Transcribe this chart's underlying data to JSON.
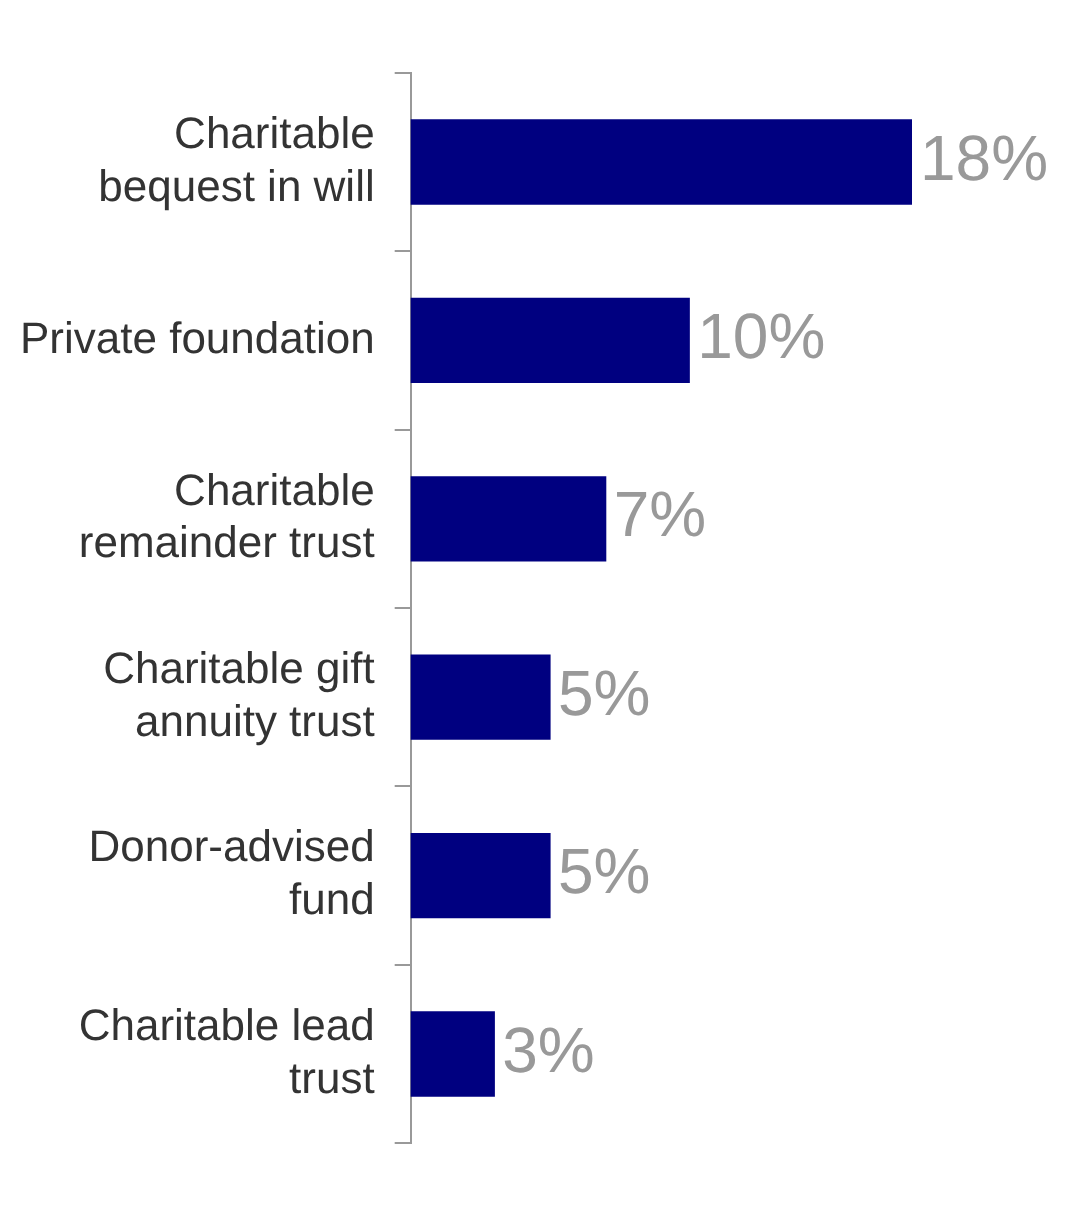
{
  "chart_data": {
    "type": "bar",
    "orientation": "horizontal",
    "categories": [
      "Charitable bequest in will",
      "Private foundation",
      "Charitable remainder trust",
      "Charitable gift annuity trust",
      "Donor-advised fund",
      "Charitable lead trust"
    ],
    "values": [
      18,
      10,
      7,
      5,
      5,
      3
    ],
    "value_labels": [
      "18%",
      "10%",
      "7%",
      "5%",
      "5%",
      "3%"
    ],
    "color": "#000080"
  }
}
